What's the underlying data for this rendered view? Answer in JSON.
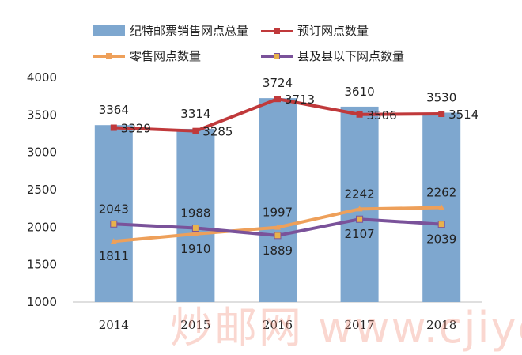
{
  "colors": {
    "bars": "#7ea7cf",
    "series_order": "#c0393b",
    "series_retail": "#eea05a",
    "series_county": "#7a529a"
  },
  "legend": {
    "bars": "纪特邮票销售网点总量",
    "order": "预订网点数量",
    "retail": "零售网点数量",
    "county": "县及县以下网点数量"
  },
  "watermark": "炒邮网 www.cjiyou.net",
  "chart_data": {
    "type": "bar",
    "categories": [
      "2014",
      "2015",
      "2016",
      "2017",
      "2018"
    ],
    "ylim": [
      1000,
      4000
    ],
    "yticks": [
      1000,
      1500,
      2000,
      2500,
      3000,
      3500,
      4000
    ],
    "grid": false,
    "legend_position": "top",
    "bars": {
      "name": "纪特邮票销售网点总量",
      "values": [
        3364,
        3314,
        3724,
        3610,
        3530
      ]
    },
    "lines": [
      {
        "name": "预订网点数量",
        "values": [
          3329,
          3285,
          3713,
          3506,
          3514
        ]
      },
      {
        "name": "零售网点数量",
        "values": [
          1811,
          1910,
          1997,
          2242,
          2262
        ]
      },
      {
        "name": "县及县以下网点数量",
        "values": [
          2043,
          1988,
          1889,
          2107,
          2039
        ]
      }
    ]
  }
}
